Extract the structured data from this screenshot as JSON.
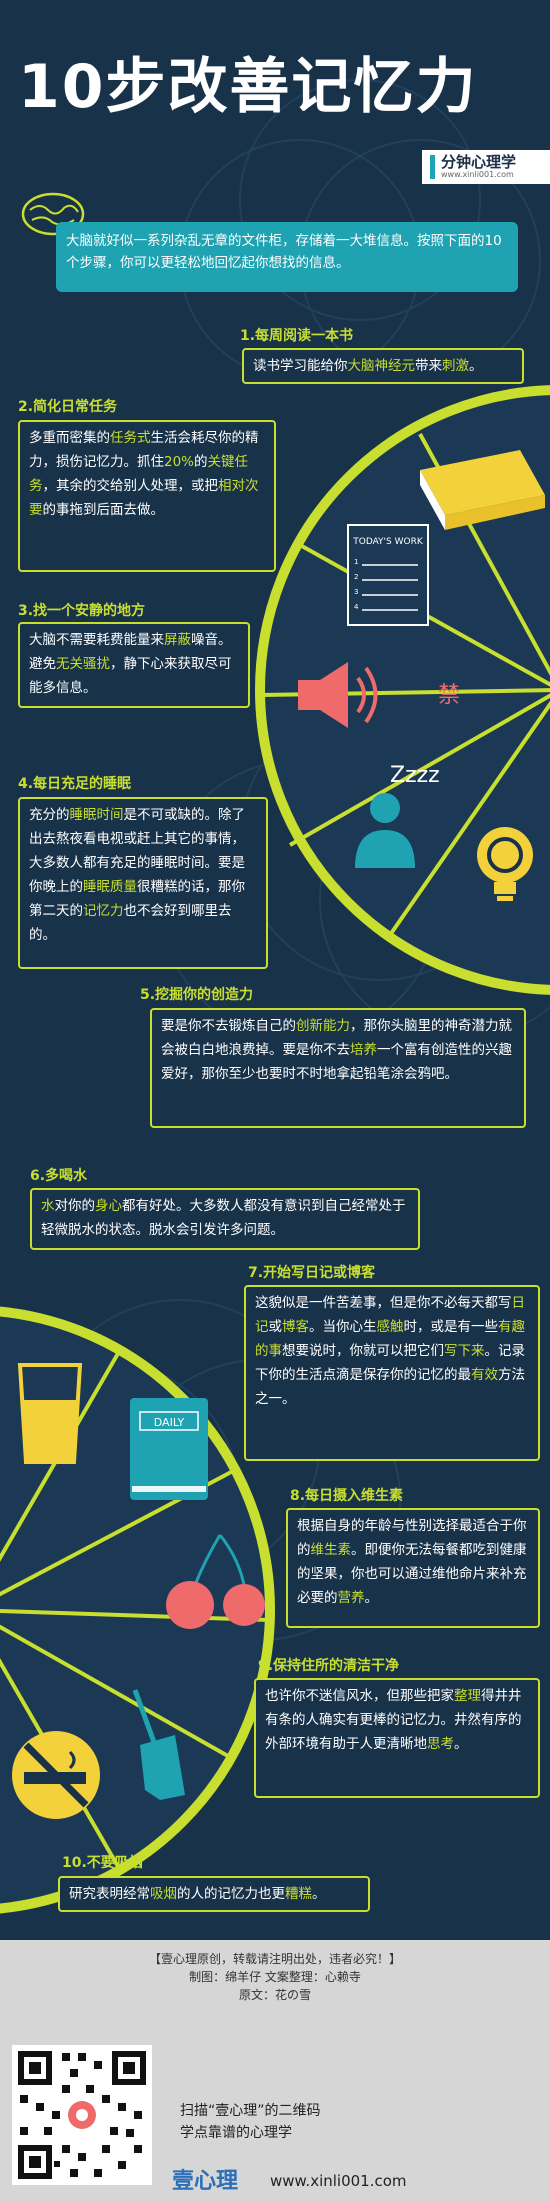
{
  "title": "10步改善记忆力",
  "brand": {
    "name": "分钟心理学",
    "url": "www.xinli001.com"
  },
  "intro": "大脑就好似一系列杂乱无章的文件柜，存储着一大堆信息。按照下面的10个步骤，你可以更轻松地回忆起你想找的信息。",
  "tips": [
    {
      "title": "1.每周阅读一本书",
      "segments": [
        {
          "t": "读书学习能给你"
        },
        {
          "t": "大脑神经元",
          "hl": true
        },
        {
          "t": "带来"
        },
        {
          "t": "刺激",
          "hl": true
        },
        {
          "t": "。"
        }
      ]
    },
    {
      "title": "2.简化日常任务",
      "segments": [
        {
          "t": "多重而密集的"
        },
        {
          "t": "任务式",
          "hl": true
        },
        {
          "t": "生活会耗尽你的精力，损伤记忆力。抓住"
        },
        {
          "t": "20%",
          "hl": true
        },
        {
          "t": "的"
        },
        {
          "t": "关键任务",
          "hl": true
        },
        {
          "t": "，其余的交给别人处理，或把"
        },
        {
          "t": "相对次要",
          "hl": true
        },
        {
          "t": "的事拖到后面去做。"
        }
      ]
    },
    {
      "title": "3.找一个安静的地方",
      "segments": [
        {
          "t": "大脑不需要耗费能量来"
        },
        {
          "t": "屏蔽",
          "hl": true
        },
        {
          "t": "噪音。避免"
        },
        {
          "t": "无关骚扰",
          "hl": true
        },
        {
          "t": "，静下心来获取尽可能多信息。"
        }
      ]
    },
    {
      "title": "4.每日充足的睡眠",
      "segments": [
        {
          "t": "充分的"
        },
        {
          "t": "睡眠时间",
          "hl": true
        },
        {
          "t": "是不可或缺的。除了出去熬夜看电视或赶上其它的事情，大多数人都有充足的睡眠时间。要是你晚上的"
        },
        {
          "t": "睡眠质量",
          "hl": true
        },
        {
          "t": "很糟糕的话，那你第二天的"
        },
        {
          "t": "记忆力",
          "hl": true
        },
        {
          "t": "也不会好到哪里去的。"
        }
      ]
    },
    {
      "title": "5.挖掘你的创造力",
      "segments": [
        {
          "t": "要是你不去锻炼自己的"
        },
        {
          "t": "创新能力",
          "hl": true
        },
        {
          "t": "，那你头脑里的神奇潜力就会被白白地浪费掉。要是你不去"
        },
        {
          "t": "培养",
          "hl": true
        },
        {
          "t": "一个富有创造性的兴趣爱好，那你至少也要时不时地拿起铅笔涂会鸦吧。"
        }
      ]
    },
    {
      "title": "6.多喝水",
      "segments": [
        {
          "t": "水",
          "hl": true
        },
        {
          "t": "对你的"
        },
        {
          "t": "身心",
          "hl": true
        },
        {
          "t": "都有好处。大多数人都没有意识到自己经常处于轻微脱水的状态。脱水会引发许多问题。"
        }
      ]
    },
    {
      "title": "7.开始写日记或博客",
      "segments": [
        {
          "t": "这貌似是一件苦差事，但是你不必每天都写"
        },
        {
          "t": "日记",
          "hl": true
        },
        {
          "t": "或"
        },
        {
          "t": "博客",
          "hl": true
        },
        {
          "t": "。当你心生"
        },
        {
          "t": "感触",
          "hl": true
        },
        {
          "t": "时，或是有一些"
        },
        {
          "t": "有趣的事",
          "hl": true
        },
        {
          "t": "想要说时，你就可以把它们"
        },
        {
          "t": "写下来",
          "hl": true
        },
        {
          "t": "。记录下你的生活点滴是保存你的记忆的最"
        },
        {
          "t": "有效",
          "hl": true
        },
        {
          "t": "方法之一。"
        }
      ]
    },
    {
      "title": "8.每日摄入维生素",
      "segments": [
        {
          "t": "根据自身的年龄与性别选择最适合于你的"
        },
        {
          "t": "维生素",
          "hl": true
        },
        {
          "t": "。即便你无法每餐都吃到健康的坚果，你也可以通过维他命片来补充必要的"
        },
        {
          "t": "营养",
          "hl": true
        },
        {
          "t": "。"
        }
      ]
    },
    {
      "title": "9.保持住所的清洁干净",
      "segments": [
        {
          "t": "也许你不迷信风水，但那些把家"
        },
        {
          "t": "整理",
          "hl": true
        },
        {
          "t": "得井井有条的人确实有更棒的记忆力。井然有序的外部环境有助于人更清晰地"
        },
        {
          "t": "思考",
          "hl": true
        },
        {
          "t": "。"
        }
      ]
    },
    {
      "title": "10.不要吸烟",
      "segments": [
        {
          "t": "研究表明经常"
        },
        {
          "t": "吸烟",
          "hl": true
        },
        {
          "t": "的人的记忆力也更"
        },
        {
          "t": "糟糕",
          "hl": true
        },
        {
          "t": "。"
        }
      ]
    }
  ],
  "icons": {
    "todo_title": "TODAY'S WORK",
    "todo_items": [
      "1",
      "2",
      "3",
      "4"
    ],
    "forbidden_char": "禁",
    "sleep_text": "Zzzz",
    "daily_label": "DAILY"
  },
  "footer": {
    "notice": "【壹心理原创，转载请注明出处，违者必究！】",
    "credits": "制图：绵羊仔    文案整理：心赖寺",
    "source": "原文：花の雪",
    "scan_line1": "扫描“壹心理”的二维码",
    "scan_line2": "学点靠谱的心理学",
    "brand": "壹心理",
    "url": "www.xinli001.com"
  },
  "colors": {
    "bg": "#18324a",
    "accent": "#c8df2f",
    "teal": "#1fa3b2",
    "coral": "#ef6a6a",
    "yellow": "#f2d13a"
  }
}
